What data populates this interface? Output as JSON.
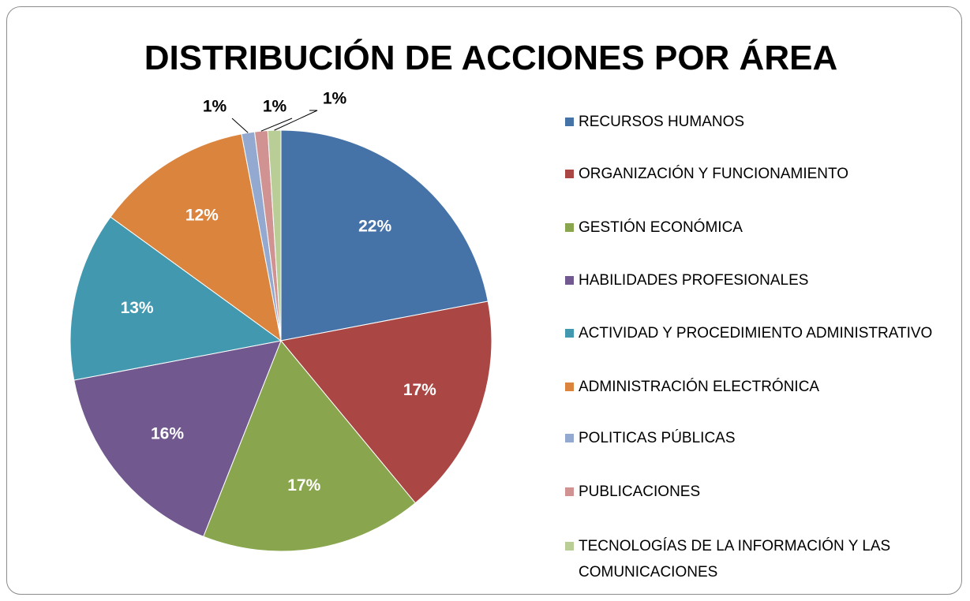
{
  "chart_data": {
    "type": "pie",
    "title": "DISTRIBUCIÓN DE ACCIONES POR ÁREA",
    "categories": [
      "RECURSOS HUMANOS",
      "ORGANIZACIÓN Y FUNCIONAMIENTO",
      "GESTIÓN ECONÓMICA",
      "HABILIDADES PROFESIONALES",
      "ACTIVIDAD Y PROCEDIMIENTO ADMINISTRATIVO",
      "ADMINISTRACIÓN ELECTRÓNICA",
      "POLITICAS PÚBLICAS",
      "PUBLICACIONES",
      "TECNOLOGÍAS DE LA INFORMACIÓN Y LAS COMUNICACIONES"
    ],
    "values": [
      22,
      17,
      17,
      16,
      13,
      12,
      1,
      1,
      1
    ],
    "value_labels": [
      "22%",
      "17%",
      "17%",
      "16%",
      "13%",
      "12%",
      "1%",
      "1%",
      "1%"
    ],
    "colors": [
      "#4572a7",
      "#aa4643",
      "#89a54e",
      "#71588f",
      "#4198af",
      "#db843d",
      "#93a9cf",
      "#d19392",
      "#b9cd96"
    ],
    "legend": "right"
  }
}
